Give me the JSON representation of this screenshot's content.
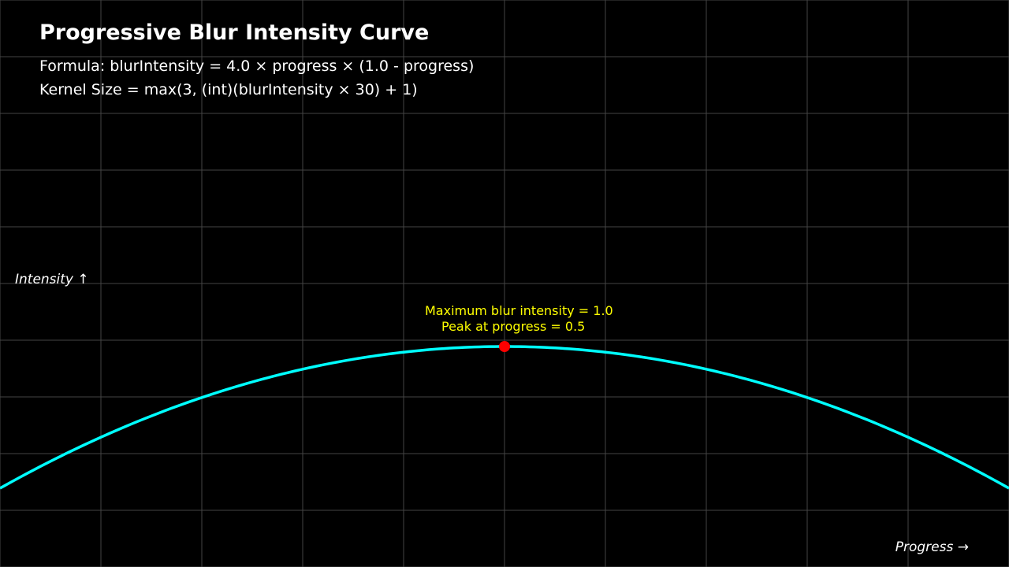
{
  "chart_data": {
    "type": "line",
    "title": "Progressive Blur Intensity Curve",
    "subtitle_lines": [
      "Formula: blurIntensity = 4.0 × progress × (1.0 - progress)",
      "Kernel Size = max(3, (int)(blurIntensity × 30) + 1)"
    ],
    "xlabel": "Progress →",
    "ylabel": "Intensity ↑",
    "xlim": [
      0,
      1
    ],
    "grid": true,
    "series": [
      {
        "formula": "4.0 * progress * (1.0 - progress)",
        "color": "#00ffff",
        "x": [
          0,
          0.05,
          0.1,
          0.15,
          0.2,
          0.25,
          0.3,
          0.35,
          0.4,
          0.45,
          0.5,
          0.55,
          0.6,
          0.65,
          0.7,
          0.75,
          0.8,
          0.85,
          0.9,
          0.95,
          1.0
        ],
        "y": [
          0,
          0.19,
          0.36,
          0.51,
          0.64,
          0.75,
          0.84,
          0.91,
          0.96,
          0.99,
          1.0,
          0.99,
          0.96,
          0.91,
          0.84,
          0.75,
          0.64,
          0.51,
          0.36,
          0.19,
          0
        ]
      }
    ],
    "peak_point": {
      "x": 0.5,
      "y": 1.0,
      "color": "#ff0000"
    },
    "annotations": [
      "Maximum blur intensity = 1.0",
      "Peak at progress = 0.5"
    ],
    "annotation_color": "#ffff00",
    "colors": {
      "background": "#000000",
      "grid": "#444444",
      "text": "#ffffff"
    }
  }
}
